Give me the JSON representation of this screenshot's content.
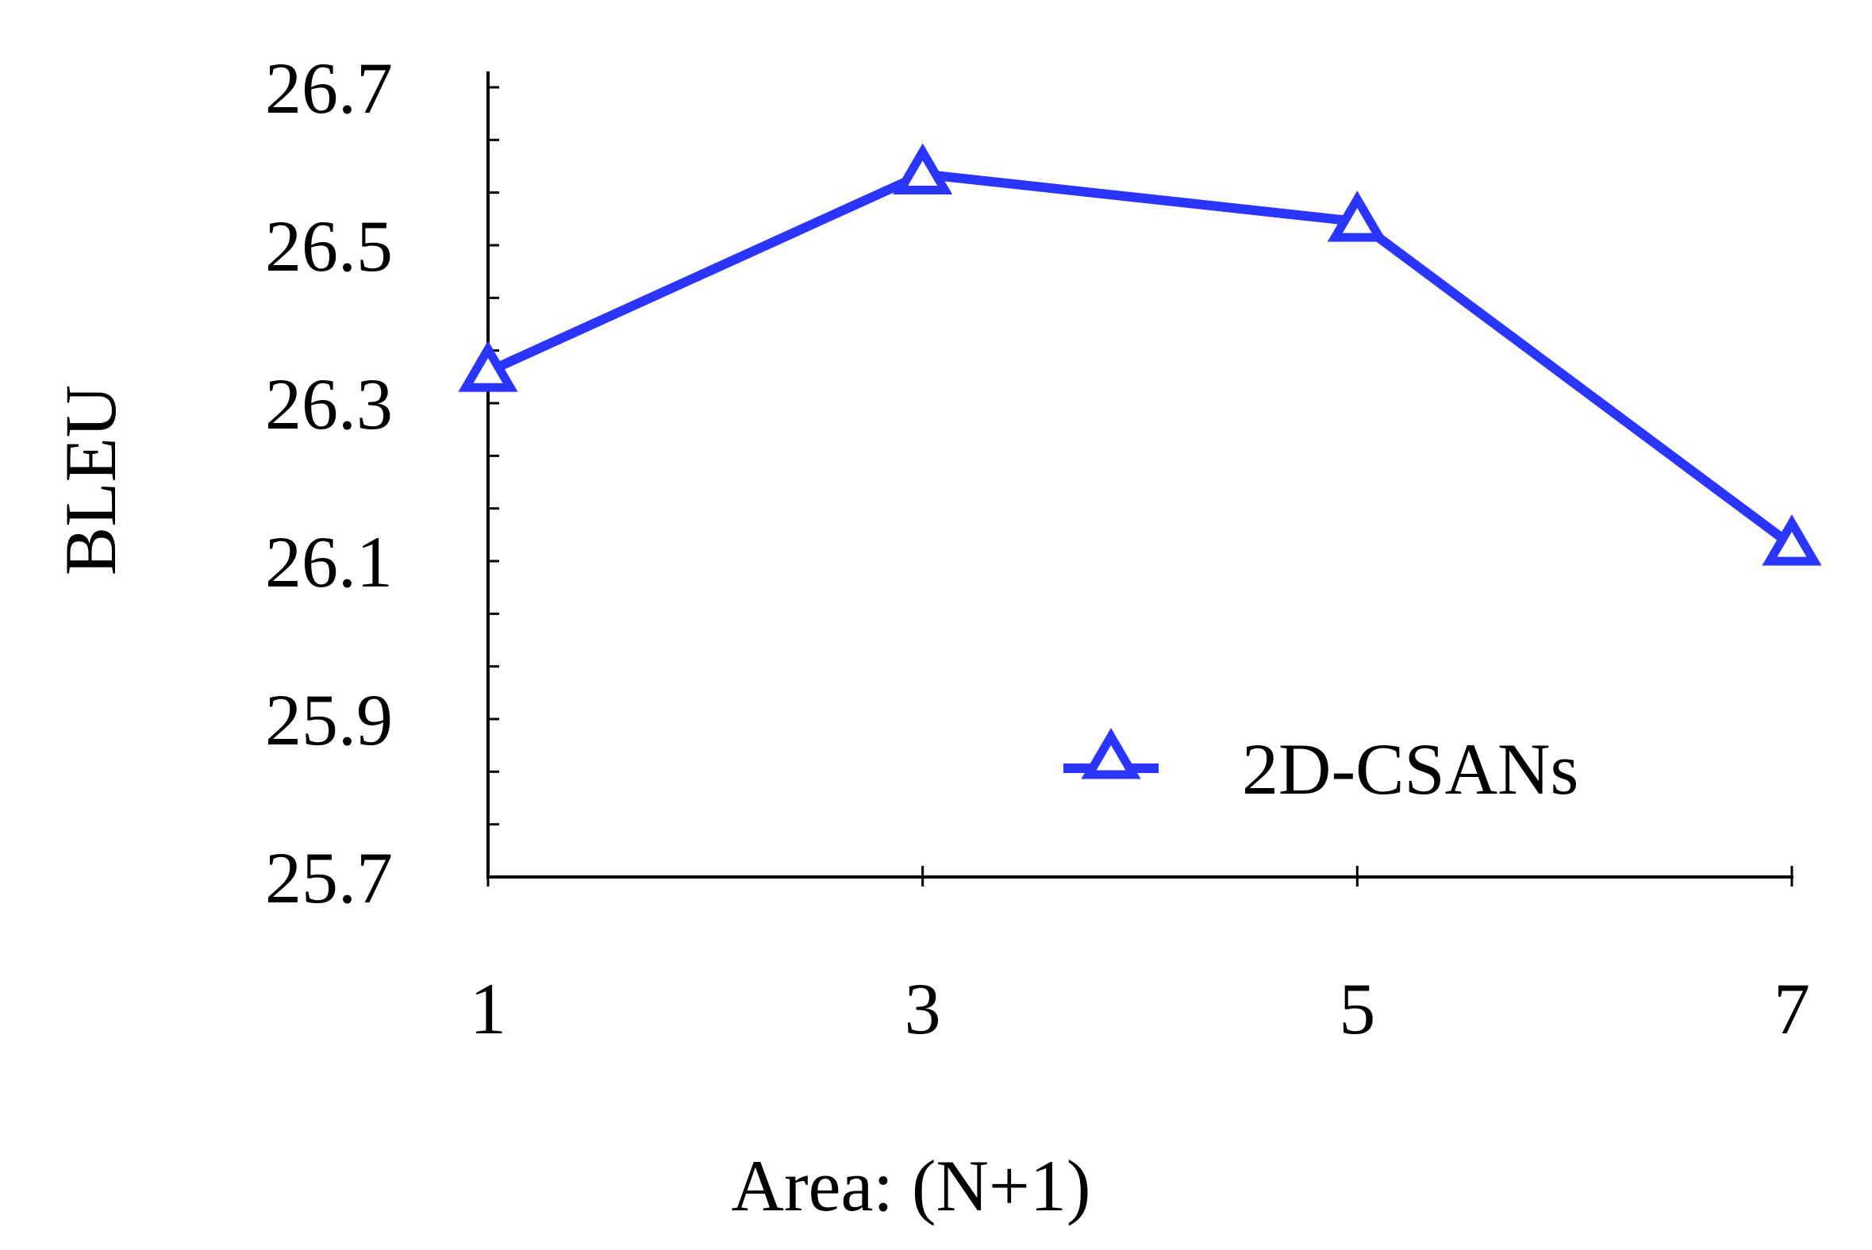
{
  "chart_data": {
    "type": "line",
    "xlabel": "Area: (N+1)",
    "ylabel": "BLEU",
    "x": [
      1,
      3,
      5,
      7
    ],
    "xticks": [
      "1",
      "3",
      "5",
      "7"
    ],
    "yticks": [
      "26.7",
      "26.5",
      "26.3",
      "26.1",
      "25.9",
      "25.7"
    ],
    "ylim": [
      25.7,
      26.7
    ],
    "series": [
      {
        "name": "2D-CSANs",
        "values": [
          26.34,
          26.59,
          26.53,
          26.12
        ],
        "marker": "triangle-open"
      }
    ],
    "legend_position": "bottom-right",
    "grid": false,
    "colors": {
      "series": "#2a35ff",
      "axis": "#000000"
    }
  }
}
